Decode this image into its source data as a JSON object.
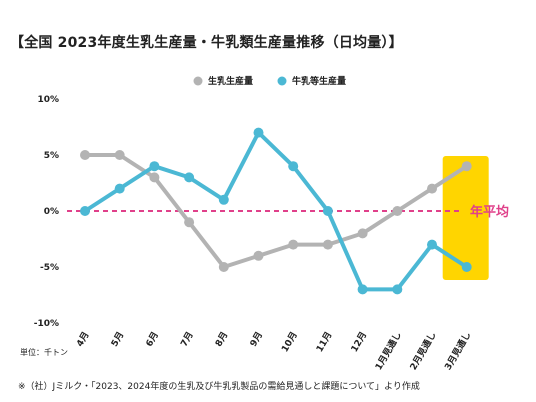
{
  "title": "【全国 2023年度生乳生産量・牛乳類生産量推移（日均量）】",
  "unit_note": "単位：千トン",
  "source_note": "※（社）Jミルク・「2023、2024年度の生乳及び牛乳乳製品の需給見通しと課題について」より作成",
  "average_label": "年平均",
  "colors": {
    "raw_milk": "#b3b3b3",
    "milk_products": "#4bb8d4",
    "average_line": "#e0408a",
    "highlight": "#ffd500"
  },
  "chart_data": {
    "type": "line",
    "categories": [
      "4月",
      "5月",
      "6月",
      "7月",
      "8月",
      "9月",
      "10月",
      "11月",
      "12月",
      "1月見通し",
      "2月見通し",
      "3月見通し"
    ],
    "series": [
      {
        "name": "生乳生産量",
        "values": [
          5,
          5,
          3,
          -1,
          -5,
          -4,
          -3,
          -3,
          -2,
          0,
          2,
          4
        ]
      },
      {
        "name": "牛乳等生産量",
        "values": [
          0,
          2,
          4,
          3,
          1,
          7,
          4,
          0,
          -7,
          -7,
          -3,
          -5
        ]
      }
    ],
    "y_ticks": [
      "10%",
      "5%",
      "0%",
      "-5%",
      "-10%"
    ],
    "ylim": [
      -10,
      10
    ],
    "reference_line": {
      "value": 0,
      "label": "年平均"
    },
    "highlighted_category": "3月見通し",
    "legend_position": "top-center",
    "grid": false
  }
}
